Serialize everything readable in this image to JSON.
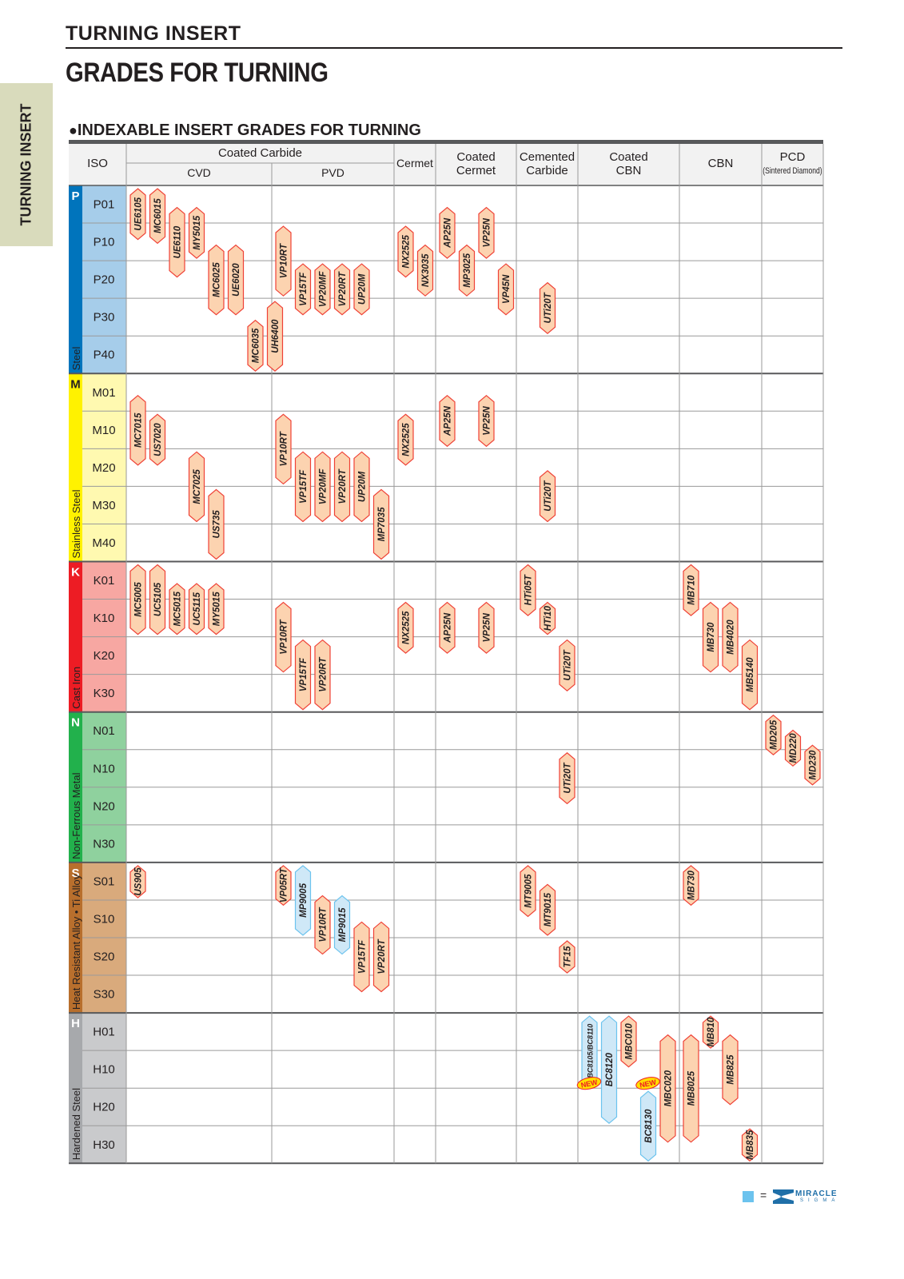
{
  "page": {
    "header_title": "TURNING INSERT",
    "header_subtitle": "GRADES FOR TURNING",
    "side_tab": "TURNING INSERT",
    "section_bullet": "●",
    "section_title": "INDEXABLE INSERT GRADES FOR TURNING"
  },
  "table": {
    "header": {
      "iso": "ISO",
      "coated_carbide": "Coated Carbide",
      "cvd": "CVD",
      "pvd": "PVD",
      "cermet": "Cermet",
      "coated_cermet": [
        "Coated",
        "Cermet"
      ],
      "cemented_carbide": [
        "Cemented",
        "Carbide"
      ],
      "coated_cbn": [
        "Coated",
        "CBN"
      ],
      "cbn": "CBN",
      "pcd": "PCD",
      "pcd_note": "(Sintered Diamond)"
    },
    "groups": [
      {
        "letter": "P",
        "name": "Steel",
        "color": "#0074bc",
        "light": "#a6cdea",
        "rows": [
          "P01",
          "P10",
          "P20",
          "P30",
          "P40"
        ]
      },
      {
        "letter": "M",
        "name": "Stainless Steel",
        "color": "#fff200",
        "light": "#fff9b0",
        "rows": [
          "M01",
          "M10",
          "M20",
          "M30",
          "M40"
        ]
      },
      {
        "letter": "K",
        "name": "Cast Iron",
        "color": "#ed1c24",
        "light": "#f7a7a2",
        "rows": [
          "K01",
          "K10",
          "K20",
          "K30"
        ]
      },
      {
        "letter": "N",
        "name": "Non-Ferrous Metal",
        "color": "#22b14c",
        "light": "#8fd19e",
        "rows": [
          "N01",
          "N10",
          "N20",
          "N30"
        ]
      },
      {
        "letter": "S",
        "name": "Heat Resistant Alloy • Ti Alloy",
        "color": "#b86f2d",
        "light": "#d9aa7c",
        "rows": [
          "S01",
          "S10",
          "S20",
          "S30"
        ]
      },
      {
        "letter": "H",
        "name": "Hardened Steel",
        "color": "#a7a9ac",
        "light": "#c9cacc",
        "rows": [
          "H01",
          "H10",
          "H20",
          "H30"
        ]
      }
    ],
    "grades": [
      {
        "label": "UE6105",
        "group": "P",
        "from": 0.0,
        "to": 1.5,
        "col": 0,
        "slot": 0
      },
      {
        "label": "MC6015",
        "group": "P",
        "from": 0.0,
        "to": 1.6,
        "col": 0,
        "slot": 1
      },
      {
        "label": "UE6110",
        "group": "P",
        "from": 0.5,
        "to": 2.5,
        "col": 0,
        "slot": 2
      },
      {
        "label": "MY5015",
        "group": "P",
        "from": 0.5,
        "to": 2.0,
        "col": 0,
        "slot": 3
      },
      {
        "label": "MC6025",
        "group": "P",
        "from": 1.5,
        "to": 3.5,
        "col": 0,
        "slot": 4
      },
      {
        "label": "UE6020",
        "group": "P",
        "from": 1.5,
        "to": 3.5,
        "col": 0,
        "slot": 5
      },
      {
        "label": "MC6035",
        "group": "P",
        "from": 3.5,
        "to": 5.0,
        "col": 0,
        "slot": 6
      },
      {
        "label": "UH6400",
        "group": "P",
        "from": 3.0,
        "to": 5.0,
        "col": 0,
        "slot": 7
      },
      {
        "label": "VP10RT",
        "group": "P",
        "from": 1.0,
        "to": 3.0,
        "col": 1,
        "slot": 0
      },
      {
        "label": "VP15TF",
        "group": "P",
        "from": 2.0,
        "to": 3.5,
        "col": 1,
        "slot": 1
      },
      {
        "label": "VP20MF",
        "group": "P",
        "from": 2.0,
        "to": 3.5,
        "col": 1,
        "slot": 2
      },
      {
        "label": "VP20RT",
        "group": "P",
        "from": 2.0,
        "to": 3.5,
        "col": 1,
        "slot": 3
      },
      {
        "label": "UP20M",
        "group": "P",
        "from": 2.0,
        "to": 3.5,
        "col": 1,
        "slot": 4
      },
      {
        "label": "NX2525",
        "group": "P",
        "from": 1.0,
        "to": 2.5,
        "col": 2,
        "slot": 0
      },
      {
        "label": "NX3035",
        "group": "P",
        "from": 1.5,
        "to": 3.0,
        "col": 2,
        "slot": 1
      },
      {
        "label": "AP25N",
        "group": "P",
        "from": 0.5,
        "to": 2.0,
        "col": 3,
        "slot": 0
      },
      {
        "label": "MP3025",
        "group": "P",
        "from": 1.5,
        "to": 3.0,
        "col": 3,
        "slot": 1
      },
      {
        "label": "VP25N",
        "group": "P",
        "from": 0.5,
        "to": 2.0,
        "col": 3,
        "slot": 2
      },
      {
        "label": "VP45N",
        "group": "P",
        "from": 2.0,
        "to": 3.5,
        "col": 3,
        "slot": 3
      },
      {
        "label": "UTi20T",
        "group": "P",
        "from": 2.5,
        "to": 4.0,
        "col": 4,
        "slot": 1
      },
      {
        "label": "MC7015",
        "group": "M",
        "from": 0.5,
        "to": 2.5,
        "col": 0,
        "slot": 0
      },
      {
        "label": "US7020",
        "group": "M",
        "from": 1.0,
        "to": 2.5,
        "col": 0,
        "slot": 1
      },
      {
        "label": "MC7025",
        "group": "M",
        "from": 2.0,
        "to": 4.0,
        "col": 0,
        "slot": 3
      },
      {
        "label": "US735",
        "group": "M",
        "from": 3.0,
        "to": 5.0,
        "col": 0,
        "slot": 4
      },
      {
        "label": "VP10RT",
        "group": "M",
        "from": 1.0,
        "to": 3.0,
        "col": 1,
        "slot": 0
      },
      {
        "label": "VP15TF",
        "group": "M",
        "from": 2.0,
        "to": 4.0,
        "col": 1,
        "slot": 1
      },
      {
        "label": "VP20MF",
        "group": "M",
        "from": 2.0,
        "to": 4.0,
        "col": 1,
        "slot": 2
      },
      {
        "label": "VP20RT",
        "group": "M",
        "from": 2.0,
        "to": 4.0,
        "col": 1,
        "slot": 3
      },
      {
        "label": "UP20M",
        "group": "M",
        "from": 2.0,
        "to": 4.0,
        "col": 1,
        "slot": 4
      },
      {
        "label": "MP7035",
        "group": "M",
        "from": 3.0,
        "to": 5.0,
        "col": 1,
        "slot": 5
      },
      {
        "label": "NX2525",
        "group": "M",
        "from": 1.0,
        "to": 2.5,
        "col": 2,
        "slot": 0
      },
      {
        "label": "AP25N",
        "group": "M",
        "from": 0.5,
        "to": 2.0,
        "col": 3,
        "slot": 0
      },
      {
        "label": "VP25N",
        "group": "M",
        "from": 0.5,
        "to": 2.0,
        "col": 3,
        "slot": 2
      },
      {
        "label": "UTi20T",
        "group": "M",
        "from": 2.5,
        "to": 4.0,
        "col": 4,
        "slot": 1
      },
      {
        "label": "MC5005",
        "group": "K",
        "from": 0.0,
        "to": 2.0,
        "col": 0,
        "slot": 0
      },
      {
        "label": "UC5105",
        "group": "K",
        "from": 0.0,
        "to": 2.0,
        "col": 0,
        "slot": 1
      },
      {
        "label": "MC5015",
        "group": "K",
        "from": 0.5,
        "to": 2.0,
        "col": 0,
        "slot": 2
      },
      {
        "label": "UC5115",
        "group": "K",
        "from": 0.5,
        "to": 2.0,
        "col": 0,
        "slot": 3
      },
      {
        "label": "MY5015",
        "group": "K",
        "from": 0.5,
        "to": 2.0,
        "col": 0,
        "slot": 4
      },
      {
        "label": "VP10RT",
        "group": "K",
        "from": 1.0,
        "to": 3.0,
        "col": 1,
        "slot": 0
      },
      {
        "label": "VP15TF",
        "group": "K",
        "from": 2.0,
        "to": 4.0,
        "col": 1,
        "slot": 1
      },
      {
        "label": "VP20RT",
        "group": "K",
        "from": 2.0,
        "to": 4.0,
        "col": 1,
        "slot": 2
      },
      {
        "label": "NX2525",
        "group": "K",
        "from": 1.0,
        "to": 2.5,
        "col": 2,
        "slot": 0
      },
      {
        "label": "AP25N",
        "group": "K",
        "from": 1.0,
        "to": 2.5,
        "col": 3,
        "slot": 0
      },
      {
        "label": "VP25N",
        "group": "K",
        "from": 1.0,
        "to": 2.5,
        "col": 3,
        "slot": 2
      },
      {
        "label": "HTi05T",
        "group": "K",
        "from": 0.0,
        "to": 1.5,
        "col": 4,
        "slot": 0
      },
      {
        "label": "HTi10",
        "group": "K",
        "from": 1.0,
        "to": 2.0,
        "col": 4,
        "slot": 1
      },
      {
        "label": "UTi20T",
        "group": "K",
        "from": 2.0,
        "to": 3.5,
        "col": 4,
        "slot": 2
      },
      {
        "label": "MB710",
        "group": "K",
        "from": 0.0,
        "to": 1.5,
        "col": 6,
        "slot": 0
      },
      {
        "label": "MB730",
        "group": "K",
        "from": 1.0,
        "to": 3.0,
        "col": 6,
        "slot": 1
      },
      {
        "label": "MB4020",
        "group": "K",
        "from": 1.0,
        "to": 3.0,
        "col": 6,
        "slot": 2
      },
      {
        "label": "MB5140",
        "group": "K",
        "from": 2.0,
        "to": 4.0,
        "col": 6,
        "slot": 3
      },
      {
        "label": "UTi20T",
        "group": "N",
        "from": 1.0,
        "to": 2.5,
        "col": 4,
        "slot": 2
      },
      {
        "label": "MD205",
        "group": "N",
        "from": 0.0,
        "to": 1.2,
        "col": 7,
        "slot": 0
      },
      {
        "label": "MD220",
        "group": "N",
        "from": 0.4,
        "to": 1.5,
        "col": 7,
        "slot": 1
      },
      {
        "label": "MD230",
        "group": "N",
        "from": 0.8,
        "to": 2.0,
        "col": 7,
        "slot": 2
      },
      {
        "label": "US905",
        "group": "S",
        "from": 0.0,
        "to": 1.0,
        "col": 0,
        "slot": 0
      },
      {
        "label": "VP05RT",
        "group": "S",
        "from": 0.0,
        "to": 1.2,
        "col": 1,
        "slot": 0
      },
      {
        "label": "MP9005",
        "group": "S",
        "from": 0.0,
        "to": 2.0,
        "col": 1,
        "slot": 1,
        "tone": "blue"
      },
      {
        "label": "VP10RT",
        "group": "S",
        "from": 0.8,
        "to": 2.5,
        "col": 1,
        "slot": 2
      },
      {
        "label": "MP9015",
        "group": "S",
        "from": 0.8,
        "to": 2.5,
        "col": 1,
        "slot": 3,
        "tone": "blue"
      },
      {
        "label": "VP15TF",
        "group": "S",
        "from": 1.5,
        "to": 3.5,
        "col": 1,
        "slot": 4
      },
      {
        "label": "VP20RT",
        "group": "S",
        "from": 1.5,
        "to": 3.5,
        "col": 1,
        "slot": 5
      },
      {
        "label": "MT9005",
        "group": "S",
        "from": 0.0,
        "to": 1.5,
        "col": 4,
        "slot": 0
      },
      {
        "label": "MT9015",
        "group": "S",
        "from": 0.5,
        "to": 2.0,
        "col": 4,
        "slot": 1
      },
      {
        "label": "TF15",
        "group": "S",
        "from": 2.0,
        "to": 3.0,
        "col": 4,
        "slot": 2
      },
      {
        "label": "MB730",
        "group": "S",
        "from": 0.0,
        "to": 1.2,
        "col": 6,
        "slot": 0
      },
      {
        "label": "BC8105/BC8110",
        "group": "H",
        "from": 0.0,
        "to": 2.0,
        "col": 5,
        "slot": 0,
        "tone": "blue"
      },
      {
        "label": "BC8120",
        "group": "H",
        "from": 0.0,
        "to": 3.0,
        "col": 5,
        "slot": 1,
        "tone": "blue"
      },
      {
        "label": "MBC010",
        "group": "H",
        "from": 0.0,
        "to": 1.5,
        "col": 5,
        "slot": 2
      },
      {
        "label": "BC8130",
        "group": "H",
        "from": 2.0,
        "to": 4.0,
        "col": 5,
        "slot": 3,
        "tone": "blue"
      },
      {
        "label": "MBC020",
        "group": "H",
        "from": 0.5,
        "to": 3.5,
        "col": 5,
        "slot": 4
      },
      {
        "label": "MB8025",
        "group": "H",
        "from": 0.5,
        "to": 3.5,
        "col": 6,
        "slot": 0
      },
      {
        "label": "MB810",
        "group": "H",
        "from": 0.0,
        "to": 1.0,
        "col": 6,
        "slot": 1
      },
      {
        "label": "MB825",
        "group": "H",
        "from": 0.5,
        "to": 2.5,
        "col": 6,
        "slot": 2
      },
      {
        "label": "MB835",
        "group": "H",
        "from": 3.0,
        "to": 4.0,
        "col": 6,
        "slot": 3
      }
    ],
    "new_badges": [
      {
        "label": "NEW",
        "group": "H",
        "level": 2.0,
        "col": 5,
        "slot": 0
      },
      {
        "label": "NEW",
        "group": "H",
        "level": 2.0,
        "col": 5,
        "slot": 3
      }
    ]
  },
  "legend": {
    "equals": "=",
    "brand": "MIRACLE",
    "brand_sub": "SIGMA"
  },
  "colors": {
    "bar_fill": "#fcd3b0",
    "bar_border": "#ef4136",
    "bar_blue_fill": "#cfe8f7",
    "bar_blue_border": "#6cc3ee",
    "grid": "#9a9a9a",
    "dark_rule": "#58595b",
    "header_fill": "#f2f2f2",
    "new_fill": "#ffde00",
    "new_text": "#ee1c24"
  }
}
